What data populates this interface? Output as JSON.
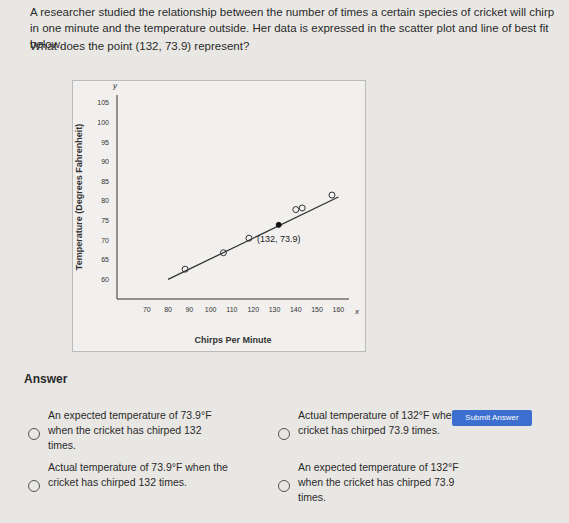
{
  "question": {
    "intro": "A researcher studied the relationship between the number of times a certain species of cricket will chirp in one minute and the temperature outside. Her data is expressed in the scatter plot and line of best fit below.",
    "prompt": "What does the point (132, 73.9) represent?"
  },
  "chart_data": {
    "type": "scatter",
    "x_label": "Chirps Per Minute",
    "y_label": "Temperature (Degrees Fahrenheit)",
    "axis_letters": {
      "x": "x",
      "y": "y"
    },
    "x": [
      88,
      106,
      118,
      140,
      143,
      157
    ],
    "values": [
      62.6,
      66.8,
      70.5,
      77.8,
      78.2,
      81.5
    ],
    "marker": "hollow",
    "color": "#333333",
    "fit_line": {
      "x": [
        80,
        160
      ],
      "values": [
        60,
        81
      ],
      "color": "#333333"
    },
    "annotations": [
      {
        "text": "(132, 73.9)",
        "x": 132,
        "y": 73.9
      }
    ],
    "xlim": [
      56,
      165
    ],
    "xticks": [
      70,
      80,
      90,
      100,
      110,
      120,
      130,
      140,
      150,
      160
    ],
    "ylim": [
      55,
      107
    ],
    "yticks": [
      60,
      65,
      70,
      75,
      80,
      85,
      90,
      95,
      100,
      105
    ],
    "grid": false
  },
  "answer": {
    "heading": "Answer",
    "options": [
      "An expected temperature of 73.9°F when the cricket has chirped 132 times.",
      "Actual temperature of 132°F when the cricket has chirped 73.9 times.",
      "Actual temperature of 73.9°F when the cricket has chirped 132 times.",
      "An expected temperature of 132°F when the cricket has chirped 73.9 times."
    ],
    "button": "Submit Answer"
  }
}
